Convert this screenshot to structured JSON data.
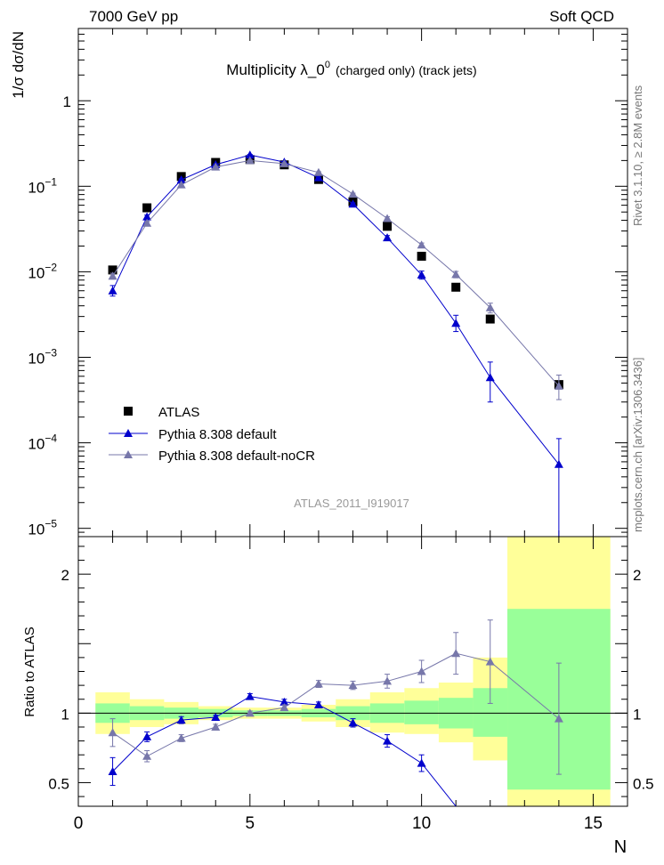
{
  "header": {
    "left": "7000 GeV pp",
    "right": "Soft QCD"
  },
  "side_text": {
    "rivet": "Rivet 3.1.10, ≥ 2.8M events",
    "mcplots": "mcplots.cern.ch [arXiv:1306.3436]"
  },
  "watermark": "ATLAS_2011_I919017",
  "chart_data": [
    {
      "type": "scatter",
      "title_main": "Multiplicity  λ_0",
      "title_sup": "0",
      "title_suffix": "(charged only) (track jets)",
      "xlabel": "N",
      "ylabel": "1/σ dσ/dN",
      "xlim": [
        0,
        16
      ],
      "ylim": [
        8e-06,
        7
      ],
      "yscale": "log",
      "y_ticks": [
        {
          "value": 1,
          "base": "1",
          "exp": ""
        },
        {
          "value": 0.1,
          "base": "10",
          "exp": "−1"
        },
        {
          "value": 0.01,
          "base": "10",
          "exp": "−2"
        },
        {
          "value": 0.001,
          "base": "10",
          "exp": "−3"
        },
        {
          "value": 0.0001,
          "base": "10",
          "exp": "−4"
        },
        {
          "value": 1e-05,
          "base": "10",
          "exp": "−5"
        }
      ],
      "legend_position": "bottom-left",
      "series": [
        {
          "name": "ATLAS",
          "color": "#000000",
          "marker": "square",
          "x": [
            1,
            2,
            3,
            4,
            5,
            6,
            7,
            8,
            9,
            10,
            11,
            12,
            14
          ],
          "y": [
            0.0105,
            0.056,
            0.13,
            0.19,
            0.205,
            0.178,
            0.12,
            0.066,
            0.034,
            0.0152,
            0.0066,
            0.0028,
            0.00048
          ]
        },
        {
          "name": "Pythia 8.308 default",
          "color": "#0000cc",
          "marker": "triangle",
          "x": [
            1,
            2,
            3,
            4,
            5,
            6,
            7,
            8,
            9,
            10,
            11,
            12,
            14
          ],
          "y": [
            0.006,
            0.044,
            0.119,
            0.179,
            0.232,
            0.192,
            0.126,
            0.062,
            0.025,
            0.0092,
            0.0025,
            0.00058,
            5.6e-05
          ],
          "yerr_low": [
            0.0052,
            0.042,
            0.116,
            0.176,
            0.228,
            0.189,
            0.124,
            0.06,
            0.0235,
            0.0082,
            0.002,
            0.0003,
            1e-07
          ],
          "yerr_high": [
            0.0069,
            0.046,
            0.122,
            0.182,
            0.236,
            0.195,
            0.128,
            0.064,
            0.0265,
            0.0102,
            0.0031,
            0.00088,
            0.000112
          ]
        },
        {
          "name": "Pythia 8.308 default-noCR",
          "color": "#7777aa",
          "marker": "triangle",
          "x": [
            1,
            2,
            3,
            4,
            5,
            6,
            7,
            8,
            9,
            10,
            11,
            12,
            14
          ],
          "y": [
            0.0089,
            0.037,
            0.104,
            0.168,
            0.2,
            0.184,
            0.145,
            0.081,
            0.042,
            0.0206,
            0.0093,
            0.0038,
            0.00046
          ],
          "yerr_low": [
            0.0082,
            0.0355,
            0.101,
            0.165,
            0.197,
            0.181,
            0.142,
            0.079,
            0.04,
            0.0195,
            0.0085,
            0.0033,
            0.00032
          ],
          "yerr_high": [
            0.0096,
            0.0385,
            0.107,
            0.171,
            0.203,
            0.187,
            0.148,
            0.083,
            0.044,
            0.0217,
            0.0101,
            0.0043,
            0.00062
          ]
        }
      ]
    },
    {
      "type": "line",
      "ylabel": "Ratio to ATLAS",
      "xlabel": "N",
      "xlim": [
        0,
        16
      ],
      "ylim": [
        0.33,
        2.27
      ],
      "x_ticks": [
        0,
        5,
        10,
        15
      ],
      "y_ticks": [
        0.5,
        1,
        2
      ],
      "band_colors": {
        "inner": "#99ff99",
        "outer": "#ffff99"
      },
      "bands": [
        {
          "x0": 0.5,
          "x1": 1.5,
          "inner": [
            0.93,
            1.07
          ],
          "outer": [
            0.85,
            1.15
          ]
        },
        {
          "x0": 1.5,
          "x1": 2.5,
          "inner": [
            0.95,
            1.05
          ],
          "outer": [
            0.9,
            1.1
          ]
        },
        {
          "x0": 2.5,
          "x1": 3.5,
          "inner": [
            0.96,
            1.04
          ],
          "outer": [
            0.92,
            1.08
          ]
        },
        {
          "x0": 3.5,
          "x1": 4.5,
          "inner": [
            0.97,
            1.03
          ],
          "outer": [
            0.95,
            1.05
          ]
        },
        {
          "x0": 4.5,
          "x1": 5.5,
          "inner": [
            0.98,
            1.02
          ],
          "outer": [
            0.96,
            1.04
          ]
        },
        {
          "x0": 5.5,
          "x1": 6.5,
          "inner": [
            0.98,
            1.02
          ],
          "outer": [
            0.96,
            1.04
          ]
        },
        {
          "x0": 6.5,
          "x1": 7.5,
          "inner": [
            0.97,
            1.03
          ],
          "outer": [
            0.94,
            1.06
          ]
        },
        {
          "x0": 7.5,
          "x1": 8.5,
          "inner": [
            0.95,
            1.05
          ],
          "outer": [
            0.9,
            1.1
          ]
        },
        {
          "x0": 8.5,
          "x1": 9.5,
          "inner": [
            0.93,
            1.07
          ],
          "outer": [
            0.86,
            1.15
          ]
        },
        {
          "x0": 9.5,
          "x1": 10.5,
          "inner": [
            0.92,
            1.09
          ],
          "outer": [
            0.85,
            1.18
          ]
        },
        {
          "x0": 10.5,
          "x1": 11.5,
          "inner": [
            0.89,
            1.11
          ],
          "outer": [
            0.79,
            1.22
          ]
        },
        {
          "x0": 11.5,
          "x1": 12.5,
          "inner": [
            0.83,
            1.18
          ],
          "outer": [
            0.66,
            1.4
          ]
        },
        {
          "x0": 12.5,
          "x1": 15.5,
          "inner": [
            0.45,
            1.75
          ],
          "outer": [
            0.33,
            2.27
          ]
        }
      ],
      "series": [
        {
          "name": "Pythia 8.308 default",
          "color": "#0000cc",
          "x": [
            1,
            2,
            3,
            4,
            5,
            6,
            7,
            8,
            9,
            10,
            11
          ],
          "y": [
            0.58,
            0.83,
            0.95,
            0.97,
            1.12,
            1.08,
            1.06,
            0.93,
            0.8,
            0.64,
            0.33
          ],
          "err": [
            0.1,
            0.035,
            0.025,
            0.015,
            0.02,
            0.02,
            0.02,
            0.03,
            0.045,
            0.06,
            0.1
          ]
        },
        {
          "name": "Pythia 8.308 default-noCR",
          "color": "#7777aa",
          "x": [
            1,
            2,
            3,
            4,
            5,
            6,
            7,
            8,
            9,
            10,
            11,
            12,
            14
          ],
          "y": [
            0.86,
            0.69,
            0.82,
            0.9,
            1.0,
            1.04,
            1.21,
            1.2,
            1.23,
            1.3,
            1.43,
            1.37,
            0.96
          ],
          "err": [
            0.1,
            0.04,
            0.025,
            0.02,
            0.015,
            0.02,
            0.025,
            0.03,
            0.05,
            0.08,
            0.15,
            0.3,
            0.4
          ]
        }
      ]
    }
  ]
}
